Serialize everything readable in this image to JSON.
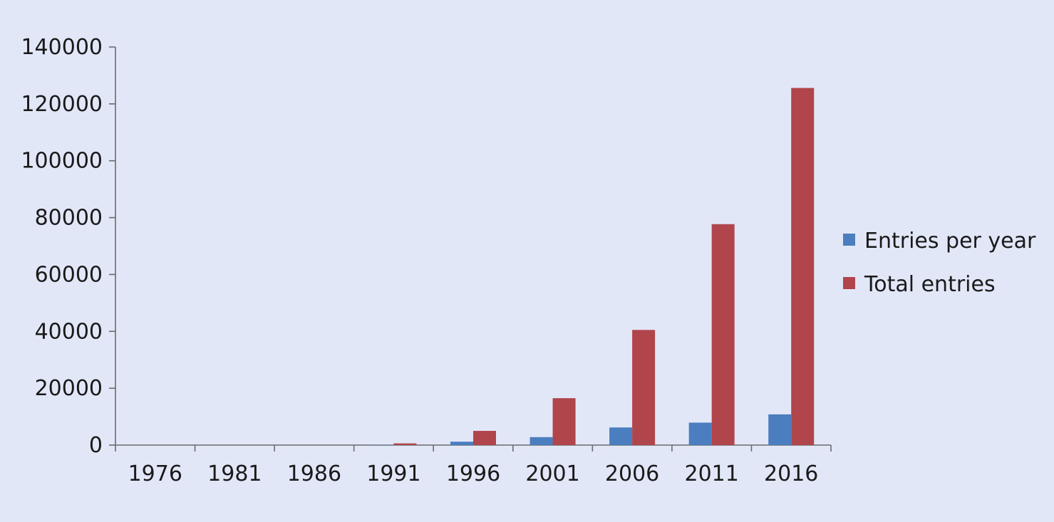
{
  "chart_data": {
    "type": "bar",
    "title": "",
    "xlabel": "",
    "ylabel": "",
    "categories": [
      "1976",
      "1981",
      "1986",
      "1991",
      "1996",
      "2001",
      "2006",
      "2011",
      "2016"
    ],
    "series": [
      {
        "name": "Entries per year",
        "color": "#4a7ebf",
        "values": [
          0,
          0,
          0,
          100,
          1200,
          2800,
          6200,
          7900,
          10800
        ]
      },
      {
        "name": "Total entries",
        "color": "#b0454c",
        "values": [
          0,
          0,
          0,
          600,
          5000,
          16500,
          40500,
          77700,
          125600
        ]
      }
    ],
    "ylim": [
      0,
      140000
    ],
    "yticks": [
      "0",
      "20000",
      "40000",
      "60000",
      "80000",
      "100000",
      "120000",
      "140000"
    ],
    "grid": false,
    "legend_position": "right"
  }
}
